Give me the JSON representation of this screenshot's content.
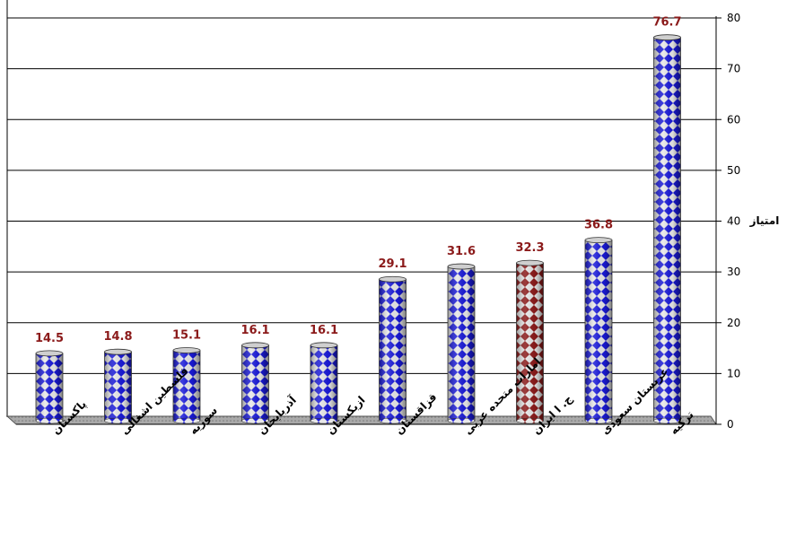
{
  "chart_data": {
    "type": "bar",
    "title": "",
    "xlabel": "",
    "ylabel": "امتیاز",
    "ylim": [
      0,
      80
    ],
    "yticks": [
      0,
      10,
      20,
      30,
      40,
      50,
      60,
      70,
      80
    ],
    "grid": true,
    "legend": "none",
    "categories": [
      "پاکستان",
      "فلسطین اشغالی",
      "سوریه",
      "آذربایجان",
      "ازبکستان",
      "قزاقستان",
      "امارات متحده عربی",
      "ج. ا ایران",
      "عربستان سعودی",
      "ترکیه"
    ],
    "values": [
      14.5,
      14.8,
      15.1,
      16.1,
      16.1,
      29.1,
      31.6,
      32.3,
      36.8,
      76.7
    ],
    "value_labels": [
      "14.5",
      "14.8",
      "15.1",
      "16.1",
      "16.1",
      "29.1",
      "31.6",
      "32.3",
      "36.8",
      "76.7"
    ],
    "highlight_index": 7
  },
  "colors": {
    "bar_primary": "#1a1ad9",
    "bar_highlight": "#8b1a1a",
    "bar_pattern_bg": "#e8e8e8",
    "label_color": "#8b1a1a",
    "floor": "#9a9a9a",
    "grid": "#000000"
  }
}
